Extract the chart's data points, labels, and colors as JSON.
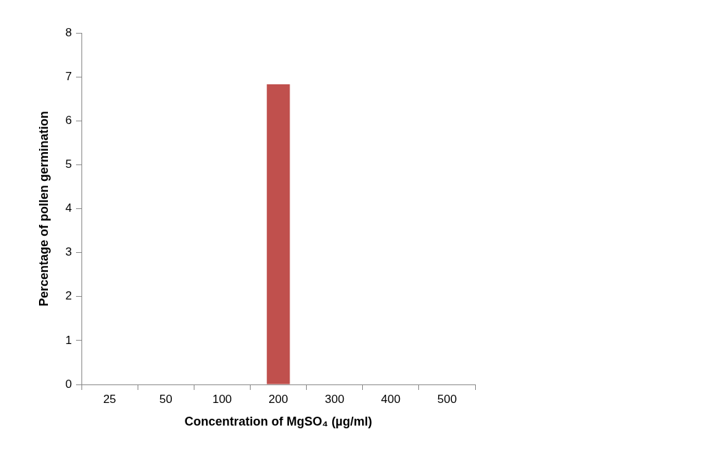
{
  "chart_data": {
    "type": "bar",
    "categories": [
      "25",
      "50",
      "100",
      "200",
      "300",
      "400",
      "500"
    ],
    "values": [
      0,
      0,
      0,
      6.83,
      0,
      0,
      0
    ],
    "color": "#c0504d",
    "xlabel": "Concentration of MgSO₄ (µg/ml)",
    "ylabel": "Percentage of pollen germination",
    "ylim": [
      0,
      8
    ],
    "yticks": [
      0,
      1,
      2,
      3,
      4,
      5,
      6,
      7,
      8
    ],
    "grid": false,
    "legend": false
  }
}
